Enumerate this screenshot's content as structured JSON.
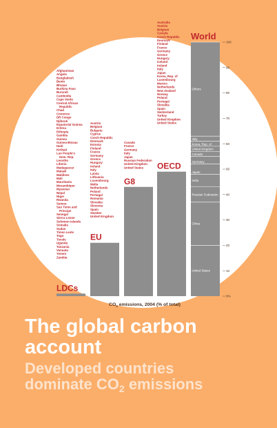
{
  "title_line1": "The global carbon",
  "title_line2": "account",
  "subtitle_line1": "Developed countries",
  "subtitle_line2_prefix": "dominate CO",
  "subtitle_line2_sub": "2",
  "subtitle_line2_suffix": " emissions",
  "colors": {
    "background": "#fbae6a",
    "circle": "#ffffff",
    "bar": "#8e8e8e",
    "label_red": "#c1272d",
    "text_dark": "#4a3020"
  },
  "chart_data": {
    "type": "bar",
    "xlabel_prefix": "CO",
    "xlabel_sub": "2",
    "xlabel_suffix": " emissions, 2004 (% of total)",
    "ylim": [
      0,
      100
    ],
    "ticks": [
      "0%",
      "10",
      "20",
      "30",
      "40",
      "50",
      "60",
      "70",
      "80",
      "90",
      "100"
    ],
    "categories": [
      "LDCs",
      "EU",
      "G8",
      "OECD",
      "World"
    ],
    "values": [
      1,
      21,
      43,
      49,
      100
    ],
    "member_lists": [
      [
        "Afghanistan",
        "Angola",
        "Bangladesh",
        "Benin",
        "Bhutan",
        "Burkina Faso",
        "Burundi",
        "Cambodia",
        "Cape Verde",
        "Central African",
        "  Republic",
        "Chad",
        "Comoros",
        "DR Congo",
        "Djibouti",
        "Equatorial Guinea",
        "Eritrea",
        "Ethiopia",
        "Gambia",
        "Guinea",
        "Guinea-Bissau",
        "Haiti",
        "Kiribati",
        "Lao People's",
        "  Dem. Rep.",
        "Lesotho",
        "Liberia",
        "Madagascar",
        "Malawi",
        "Maldives",
        "Mali",
        "Mauritania",
        "Mozambique",
        "Myanmar",
        "Nepal",
        "Niger",
        "Rwanda",
        "Samoa",
        "Sao Tome and",
        "  Principe",
        "Senegal",
        "Sierra Leone",
        "Solomon Islands",
        "Somalia",
        "Sudan",
        "Timor-Leste",
        "Togo",
        "Tuvalu",
        "Uganda",
        "Tanzania",
        "Vanuatu",
        "Yemen",
        "Zambia"
      ],
      [
        "Austria",
        "Belgium",
        "Bulgaria",
        "Cyprus",
        "Czech Republic",
        "Denmark",
        "Estonia",
        "Finland",
        "France",
        "Germany",
        "Greece",
        "Hungary",
        "Ireland",
        "Italy",
        "Latvia",
        "Lithuania",
        "Luxembourg",
        "Malta",
        "Netherlands",
        "Poland",
        "Portugal",
        "Romania",
        "Slovakia",
        "Slovenia",
        "Spain",
        "Sweden",
        "United Kingdom"
      ],
      [
        "Canada",
        "France",
        "Germany",
        "Italy",
        "Japan",
        "Russian Federation",
        "United Kingdom",
        "United States"
      ],
      [
        "Australia",
        "Austria",
        "Belgium",
        "Canada",
        "Czech Republic",
        "Denmark",
        "Finland",
        "France",
        "Germany",
        "Greece",
        "Hungary",
        "Iceland",
        "Ireland",
        "Italy",
        "Japan",
        "Korea, Rep. of",
        "Luxembourg",
        "Mexico",
        "Netherlands",
        "New Zealand",
        "Norway",
        "Poland",
        "Portugal",
        "Slovakia",
        "Spain",
        "Switzerland",
        "Turkey",
        "United Kingdom",
        "United States"
      ]
    ],
    "world_segments": [
      {
        "name": "United States",
        "value": 20
      },
      {
        "name": "China",
        "value": 17
      },
      {
        "name": "Russian Federation",
        "value": 6
      },
      {
        "name": "India",
        "value": 5
      },
      {
        "name": "Japan",
        "value": 4
      },
      {
        "name": "Germany",
        "value": 3
      },
      {
        "name": "Canada",
        "value": 2
      },
      {
        "name": "United Kingdom",
        "value": 2
      },
      {
        "name": "Korea, Rep. of",
        "value": 2
      },
      {
        "name": "Italy",
        "value": 2
      },
      {
        "name": "Others",
        "value": 37
      }
    ]
  }
}
